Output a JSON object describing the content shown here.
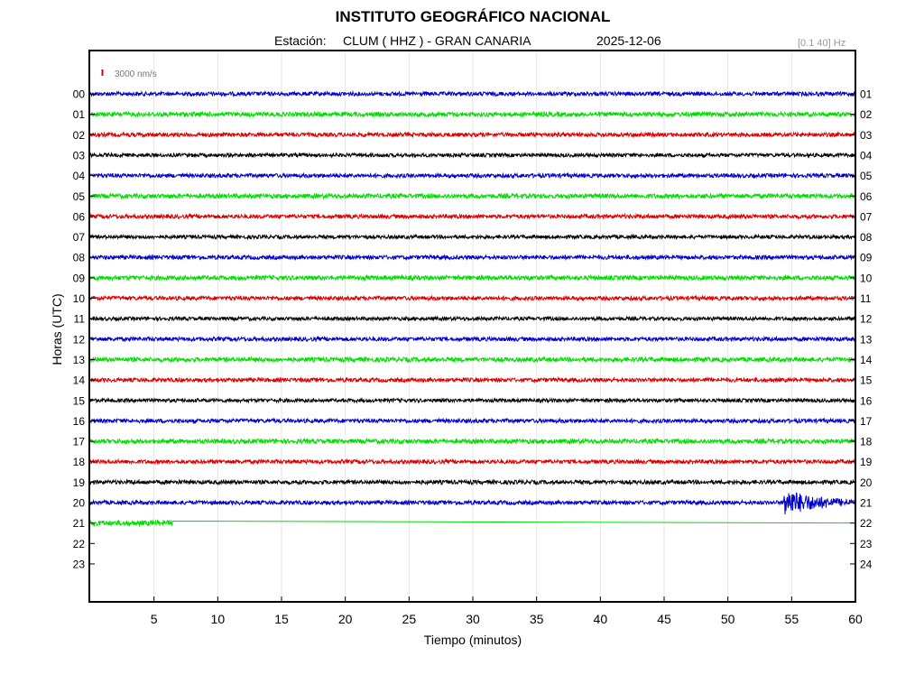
{
  "header": {
    "title": "INSTITUTO GEOGRÁFICO NACIONAL",
    "station_label": "Estación:",
    "station_name": "CLUM ( HHZ ) - GRAN CANARIA",
    "date": "2025-12-06",
    "filter": "[0.1 40] Hz"
  },
  "scale": {
    "label": "3000 nm/s",
    "color": "#e00000"
  },
  "chart_data": {
    "type": "line",
    "title": "INSTITUTO GEOGRÁFICO NACIONAL",
    "xlabel": "Tiempo (minutos)",
    "ylabel": "Horas (UTC)",
    "xlim": [
      0,
      60
    ],
    "x_ticks": [
      5,
      10,
      15,
      20,
      25,
      30,
      35,
      40,
      45,
      50,
      55,
      60
    ],
    "left_ticks": [
      "00",
      "01",
      "02",
      "03",
      "04",
      "05",
      "06",
      "07",
      "08",
      "09",
      "10",
      "11",
      "12",
      "13",
      "14",
      "15",
      "16",
      "17",
      "18",
      "19",
      "20",
      "21",
      "22",
      "23"
    ],
    "right_ticks": [
      "01",
      "02",
      "03",
      "04",
      "05",
      "06",
      "07",
      "08",
      "09",
      "10",
      "11",
      "12",
      "13",
      "14",
      "15",
      "16",
      "17",
      "18",
      "19",
      "20",
      "21",
      "22",
      "23",
      "24"
    ],
    "grid": "vertical",
    "line_colors": [
      "#0000cc",
      "#00dd00",
      "#dd0000",
      "#000000"
    ],
    "series": [
      {
        "values": [
          {
            "from": 0,
            "to": 60,
            "amp": 1.0
          }
        ]
      },
      {
        "values": [
          {
            "from": 0,
            "to": 60,
            "amp": 1.1
          }
        ]
      },
      {
        "values": [
          {
            "from": 0,
            "to": 60,
            "amp": 1.0
          }
        ]
      },
      {
        "values": [
          {
            "from": 0,
            "to": 60,
            "amp": 0.9
          }
        ]
      },
      {
        "values": [
          {
            "from": 0,
            "to": 60,
            "amp": 1.0
          }
        ]
      },
      {
        "values": [
          {
            "from": 0,
            "to": 60,
            "amp": 1.1
          }
        ]
      },
      {
        "values": [
          {
            "from": 0,
            "to": 60,
            "amp": 1.0
          }
        ]
      },
      {
        "values": [
          {
            "from": 0,
            "to": 60,
            "amp": 0.9
          }
        ]
      },
      {
        "values": [
          {
            "from": 0,
            "to": 60,
            "amp": 1.0
          }
        ]
      },
      {
        "values": [
          {
            "from": 0,
            "to": 60,
            "amp": 1.1
          }
        ]
      },
      {
        "values": [
          {
            "from": 0,
            "to": 60,
            "amp": 1.0
          }
        ]
      },
      {
        "values": [
          {
            "from": 0,
            "to": 60,
            "amp": 0.9
          }
        ]
      },
      {
        "values": [
          {
            "from": 0,
            "to": 60,
            "amp": 1.0
          }
        ]
      },
      {
        "values": [
          {
            "from": 0,
            "to": 60,
            "amp": 1.1
          }
        ]
      },
      {
        "values": [
          {
            "from": 0,
            "to": 60,
            "amp": 1.0
          }
        ]
      },
      {
        "values": [
          {
            "from": 0,
            "to": 60,
            "amp": 0.9
          }
        ]
      },
      {
        "values": [
          {
            "from": 0,
            "to": 60,
            "amp": 1.0
          }
        ]
      },
      {
        "values": [
          {
            "from": 0,
            "to": 60,
            "amp": 1.1
          }
        ]
      },
      {
        "values": [
          {
            "from": 0,
            "to": 60,
            "amp": 1.0
          }
        ]
      },
      {
        "values": [
          {
            "from": 0,
            "to": 60,
            "amp": 1.0
          }
        ]
      },
      {
        "values": [
          {
            "from": 0,
            "to": 60,
            "amp": 1.0
          }
        ],
        "event": {
          "start": 54.4,
          "amp": 6.5,
          "decay_min": 2.5
        }
      },
      {
        "values": [
          {
            "from": 0,
            "to": 6.5,
            "amp": 1.3
          }
        ],
        "flat_to": 60
      }
    ]
  }
}
